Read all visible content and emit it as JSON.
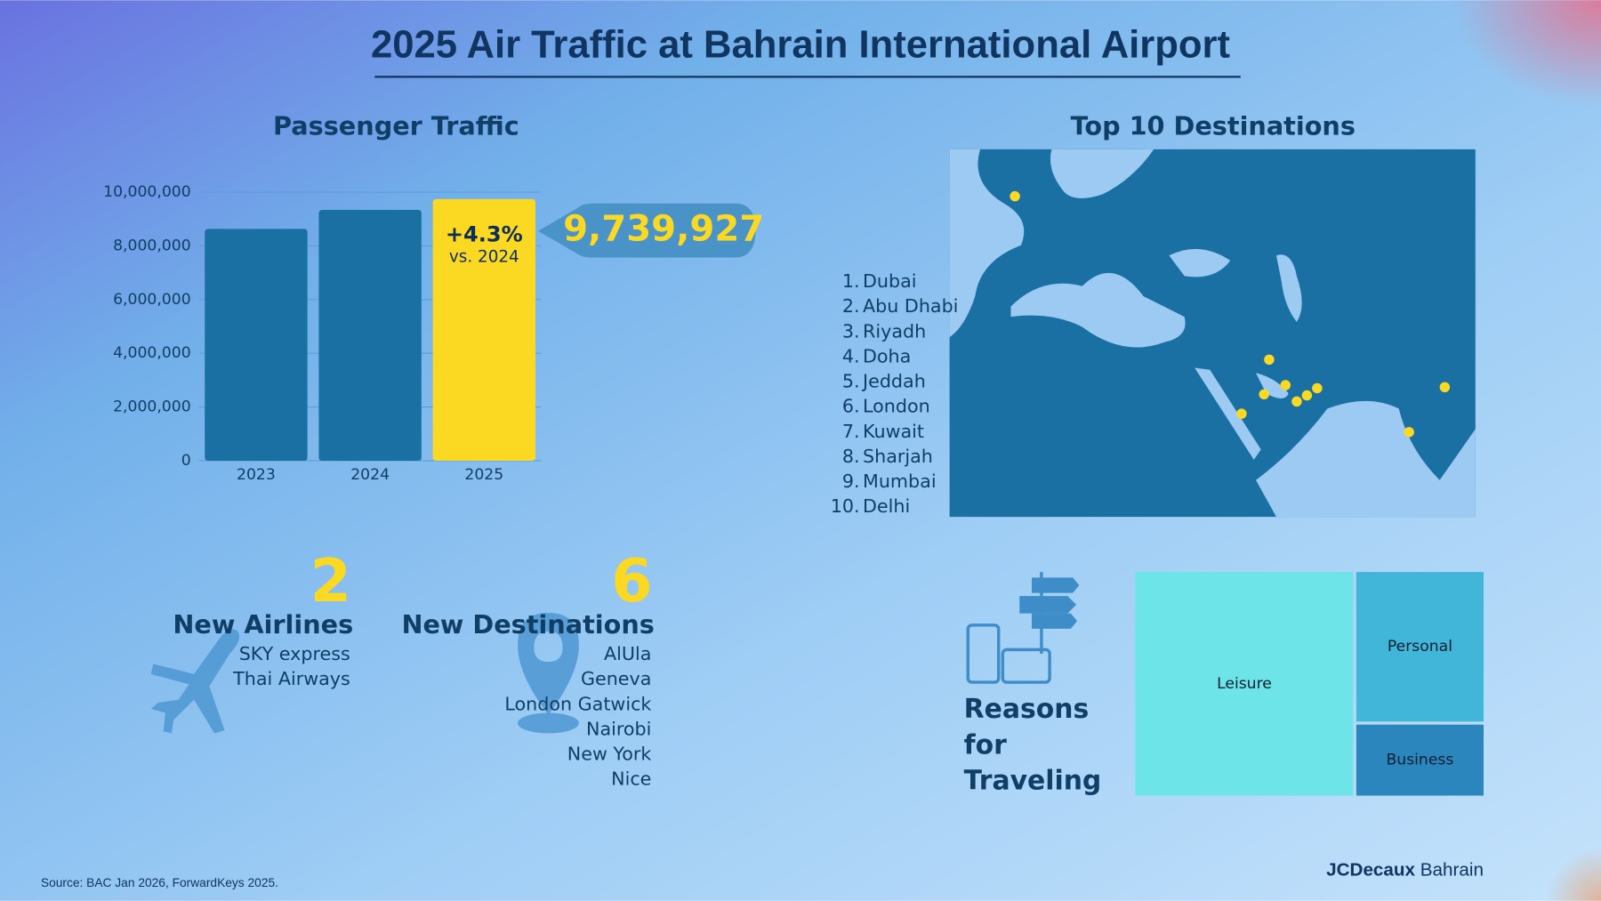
{
  "title": "2025 Air Traffic at Bahrain International Airport",
  "chart_data": [
    {
      "type": "bar",
      "title": "Passenger Traffic",
      "categories": [
        "2023",
        "2024",
        "2025"
      ],
      "values": [
        8630000,
        9340000,
        9739927
      ],
      "value_labels": [
        null,
        null,
        "9,739,927"
      ],
      "annotations": [
        "+4.3%",
        "vs. 2024"
      ],
      "colors": [
        "#1a6fa3",
        "#1a6fa3",
        "#fbd923"
      ],
      "ylim": [
        0,
        10000000
      ],
      "yticks": [
        0,
        {
          "value": 2000000,
          "label": "2,000,000"
        },
        {
          "value": 4000000,
          "label": "4,000,000"
        },
        {
          "value": 6000000,
          "label": "6,000,000"
        },
        {
          "value": 8000000,
          "label": "8,000,000"
        },
        {
          "value": 10000000,
          "label": "10,000,000"
        }
      ],
      "grid": true
    },
    {
      "type": "treemap",
      "title": "Reasons for Traveling",
      "categories": [
        "Leisure",
        "Personal",
        "Business"
      ],
      "values": [
        63,
        25,
        12
      ],
      "colors": [
        "#6ce4e8",
        "#41b6d8",
        "#2b86bd"
      ]
    }
  ],
  "destinations": {
    "title": "Top 10 Destinations",
    "items": [
      {
        "rank": "1.",
        "name": "Dubai"
      },
      {
        "rank": "2.",
        "name": "Abu Dhabi"
      },
      {
        "rank": "3.",
        "name": "Riyadh"
      },
      {
        "rank": "4.",
        "name": "Doha"
      },
      {
        "rank": "5.",
        "name": "Jeddah"
      },
      {
        "rank": "6.",
        "name": "London"
      },
      {
        "rank": "7.",
        "name": "Kuwait"
      },
      {
        "rank": "8.",
        "name": "Sharjah"
      },
      {
        "rank": "9.",
        "name": "Mumbai"
      },
      {
        "rank": "10.",
        "name": "Delhi"
      }
    ]
  },
  "new_airlines": {
    "count": 2,
    "label": "New Airlines",
    "items": [
      "SKY express",
      "Thai Airways"
    ]
  },
  "new_destinations": {
    "count": 6,
    "label": "New Destinations",
    "items": [
      "AlUla",
      "Geneva",
      "London Gatwick",
      "Nairobi",
      "New York",
      "Nice"
    ]
  },
  "footer": {
    "source": "Source: BAC Jan 2026, ForwardKeys 2025.",
    "brand": [
      "JCDecaux",
      "Bahrain"
    ]
  }
}
